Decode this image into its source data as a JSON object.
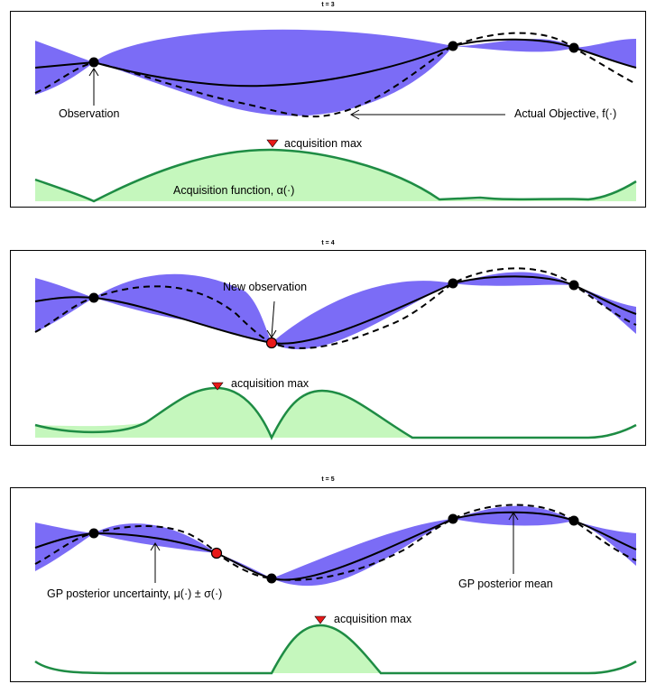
{
  "panels": [
    {
      "title": "t = 3",
      "labels": {
        "observation": "Observation",
        "objective": "Actual Objective, f(·)",
        "acq_max": "acquisition max",
        "acq_fn": "Acquisition function, α(·)"
      }
    },
    {
      "title": "t = 4",
      "labels": {
        "new_observation": "New observation",
        "acq_max": "acquisition max"
      }
    },
    {
      "title": "t = 5",
      "labels": {
        "uncertainty": "GP posterior uncertainty, μ(·) ± σ(·)",
        "posterior_mean": "GP posterior mean",
        "acq_max": "acquisition max"
      }
    }
  ],
  "colors": {
    "uncertainty_band": "#7b6cf6",
    "acquisition_fill": "#c5f7bd",
    "acquisition_line": "#1e8c44",
    "observation_point": "#000000",
    "new_observation_point": "#e81919",
    "acq_max_marker": "#e81919"
  }
}
